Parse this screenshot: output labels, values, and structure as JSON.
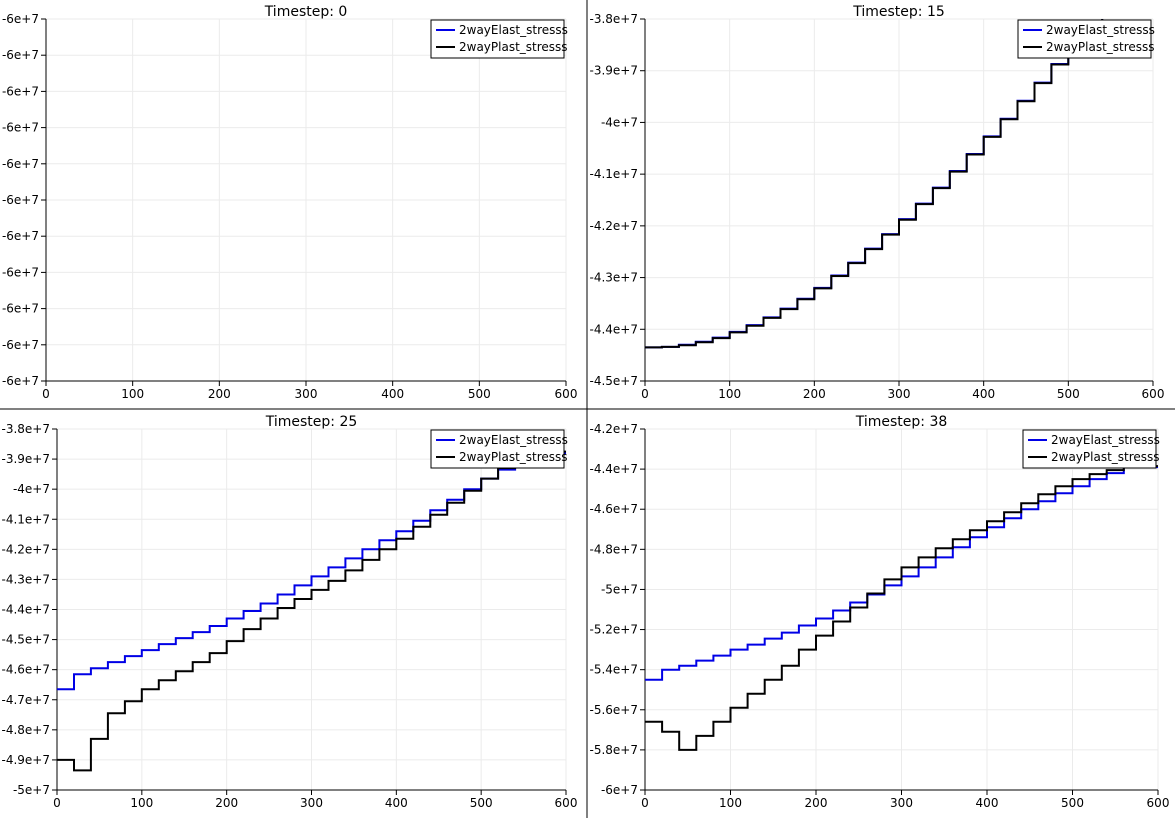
{
  "chart_data": [
    {
      "type": "line",
      "title": "Timestep: 0",
      "xlim": [
        0,
        600
      ],
      "xticks": [
        0,
        100,
        200,
        300,
        400,
        500,
        600
      ],
      "ylim": [
        -60000000.5,
        -59999999.5
      ],
      "yticks": [
        {
          "v": -60000000.5,
          "label": "-6e+7"
        },
        {
          "v": -60000000.4,
          "label": "-6e+7"
        },
        {
          "v": -60000000.3,
          "label": "-6e+7"
        },
        {
          "v": -60000000.2,
          "label": "-6e+7"
        },
        {
          "v": -60000000.1,
          "label": "-6e+7"
        },
        {
          "v": -60000000.0,
          "label": "-6e+7"
        },
        {
          "v": -59999999.9,
          "label": "-6e+7"
        },
        {
          "v": -59999999.8,
          "label": "-6e+7"
        },
        {
          "v": -59999999.7,
          "label": "-6e+7"
        },
        {
          "v": -59999999.6,
          "label": "-6e+7"
        },
        {
          "v": -59999999.5,
          "label": "-6e+7"
        }
      ],
      "grid": true,
      "legend": "top-right",
      "series": [
        {
          "name": "2wayElast_stresss",
          "color": "#0000e6",
          "x": [],
          "y": []
        },
        {
          "name": "2wayPlast_stresss",
          "color": "#000000",
          "x": [],
          "y": []
        }
      ]
    },
    {
      "type": "line",
      "title": "Timestep: 15",
      "xlim": [
        0,
        600
      ],
      "xticks": [
        0,
        100,
        200,
        300,
        400,
        500,
        600
      ],
      "ylim": [
        -45000000,
        -38000000
      ],
      "yticks": [
        {
          "v": -45000000,
          "label": "-4.5e+7"
        },
        {
          "v": -44000000,
          "label": "-4.4e+7"
        },
        {
          "v": -43000000,
          "label": "-4.3e+7"
        },
        {
          "v": -42000000,
          "label": "-4.2e+7"
        },
        {
          "v": -41000000,
          "label": "-4.1e+7"
        },
        {
          "v": -40000000,
          "label": "-4e+7"
        },
        {
          "v": -39000000,
          "label": "-3.9e+7"
        },
        {
          "v": -38000000,
          "label": "-3.8e+7"
        }
      ],
      "grid": true,
      "legend": "top-right",
      "series": [
        {
          "name": "2wayElast_stresss",
          "color": "#0000e6",
          "x": [
            0,
            20,
            40,
            60,
            80,
            100,
            120,
            140,
            160,
            180,
            200,
            220,
            240,
            260,
            280,
            300,
            320,
            340,
            360,
            380,
            400,
            420,
            440,
            460,
            480,
            500,
            520,
            540,
            560
          ],
          "y": [
            -44350000,
            -44340000,
            -44300000,
            -44240000,
            -44160000,
            -44050000,
            -43920000,
            -43770000,
            -43600000,
            -43410000,
            -43200000,
            -42960000,
            -42710000,
            -42440000,
            -42160000,
            -41870000,
            -41570000,
            -41260000,
            -40940000,
            -40610000,
            -40270000,
            -39930000,
            -39580000,
            -39230000,
            -38870000,
            -38510000,
            -38150000,
            -37780000,
            -37400000
          ]
        },
        {
          "name": "2wayPlast_stresss",
          "color": "#000000",
          "x": [
            0,
            20,
            40,
            60,
            80,
            100,
            120,
            140,
            160,
            180,
            200,
            220,
            240,
            260,
            280,
            300,
            320,
            340,
            360,
            380,
            400,
            420,
            440,
            460,
            480,
            500,
            520,
            540,
            560
          ],
          "y": [
            -44350000,
            -44340000,
            -44310000,
            -44250000,
            -44170000,
            -44060000,
            -43930000,
            -43780000,
            -43610000,
            -43420000,
            -43210000,
            -42970000,
            -42720000,
            -42450000,
            -42170000,
            -41880000,
            -41580000,
            -41270000,
            -40950000,
            -40620000,
            -40280000,
            -39940000,
            -39590000,
            -39240000,
            -38880000,
            -38520000,
            -38160000,
            -37790000,
            -37410000
          ]
        }
      ]
    },
    {
      "type": "line",
      "title": "Timestep: 25",
      "xlim": [
        0,
        600
      ],
      "xticks": [
        0,
        100,
        200,
        300,
        400,
        500,
        600
      ],
      "ylim": [
        -50000000,
        -38000000
      ],
      "yticks": [
        {
          "v": -50000000,
          "label": "-5e+7"
        },
        {
          "v": -49000000,
          "label": "-4.9e+7"
        },
        {
          "v": -48000000,
          "label": "-4.8e+7"
        },
        {
          "v": -47000000,
          "label": "-4.7e+7"
        },
        {
          "v": -46000000,
          "label": "-4.6e+7"
        },
        {
          "v": -45000000,
          "label": "-4.5e+7"
        },
        {
          "v": -44000000,
          "label": "-4.4e+7"
        },
        {
          "v": -43000000,
          "label": "-4.3e+7"
        },
        {
          "v": -42000000,
          "label": "-4.2e+7"
        },
        {
          "v": -41000000,
          "label": "-4.1e+7"
        },
        {
          "v": -40000000,
          "label": "-4e+7"
        },
        {
          "v": -39000000,
          "label": "-3.9e+7"
        },
        {
          "v": -38000000,
          "label": "-3.8e+7"
        }
      ],
      "grid": true,
      "legend": "top-right",
      "series": [
        {
          "name": "2wayElast_stresss",
          "color": "#0000e6",
          "x": [
            0,
            20,
            40,
            60,
            80,
            100,
            120,
            140,
            160,
            180,
            200,
            220,
            240,
            260,
            280,
            300,
            320,
            340,
            360,
            380,
            400,
            420,
            440,
            460,
            480,
            500,
            520,
            540,
            560
          ],
          "y": [
            -46650000,
            -46150000,
            -45950000,
            -45750000,
            -45550000,
            -45350000,
            -45150000,
            -44950000,
            -44750000,
            -44550000,
            -44300000,
            -44050000,
            -43800000,
            -43500000,
            -43200000,
            -42900000,
            -42600000,
            -42300000,
            -42000000,
            -41700000,
            -41400000,
            -41050000,
            -40700000,
            -40350000,
            -40000000,
            -39650000,
            -39350000,
            -39100000,
            -38800000
          ]
        },
        {
          "name": "2wayPlast_stresss",
          "color": "#000000",
          "x": [
            0,
            20,
            40,
            60,
            80,
            100,
            120,
            140,
            160,
            180,
            200,
            220,
            240,
            260,
            280,
            300,
            320,
            340,
            360,
            380,
            400,
            420,
            440,
            460,
            480,
            500,
            520,
            540,
            560
          ],
          "y": [
            -49000000,
            -49350000,
            -48300000,
            -47450000,
            -47050000,
            -46650000,
            -46350000,
            -46050000,
            -45750000,
            -45450000,
            -45050000,
            -44650000,
            -44300000,
            -43950000,
            -43650000,
            -43350000,
            -43050000,
            -42700000,
            -42350000,
            -42000000,
            -41650000,
            -41250000,
            -40850000,
            -40450000,
            -40050000,
            -39650000,
            -39300000,
            -39050000,
            -38750000
          ]
        }
      ]
    },
    {
      "type": "line",
      "title": "Timestep: 38",
      "xlim": [
        0,
        600
      ],
      "xticks": [
        0,
        100,
        200,
        300,
        400,
        500,
        600
      ],
      "ylim": [
        -60000000,
        -42000000
      ],
      "yticks": [
        {
          "v": -60000000,
          "label": "-6e+7"
        },
        {
          "v": -58000000,
          "label": "-5.8e+7"
        },
        {
          "v": -56000000,
          "label": "-5.6e+7"
        },
        {
          "v": -54000000,
          "label": "-5.4e+7"
        },
        {
          "v": -52000000,
          "label": "-5.2e+7"
        },
        {
          "v": -50000000,
          "label": "-5e+7"
        },
        {
          "v": -48000000,
          "label": "-4.8e+7"
        },
        {
          "v": -46000000,
          "label": "-4.6e+7"
        },
        {
          "v": -44000000,
          "label": "-4.4e+7"
        },
        {
          "v": -42000000,
          "label": "-4.2e+7"
        }
      ],
      "grid": true,
      "legend": "top-right",
      "series": [
        {
          "name": "2wayElast_stresss",
          "color": "#0000e6",
          "x": [
            0,
            20,
            40,
            60,
            80,
            100,
            120,
            140,
            160,
            180,
            200,
            220,
            240,
            260,
            280,
            300,
            320,
            340,
            360,
            380,
            400,
            420,
            440,
            460,
            480,
            500,
            520,
            540,
            560
          ],
          "y": [
            -54500000,
            -54000000,
            -53800000,
            -53550000,
            -53300000,
            -53000000,
            -52750000,
            -52450000,
            -52150000,
            -51800000,
            -51450000,
            -51050000,
            -50650000,
            -50250000,
            -49800000,
            -49350000,
            -48900000,
            -48400000,
            -47900000,
            -47400000,
            -46900000,
            -46450000,
            -46000000,
            -45600000,
            -45200000,
            -44850000,
            -44500000,
            -44200000,
            -43900000
          ]
        },
        {
          "name": "2wayPlast_stresss",
          "color": "#000000",
          "x": [
            0,
            20,
            40,
            60,
            80,
            100,
            120,
            140,
            160,
            180,
            200,
            220,
            240,
            260,
            280,
            300,
            320,
            340,
            360,
            380,
            400,
            420,
            440,
            460,
            480,
            500,
            520,
            540,
            560
          ],
          "y": [
            -56600000,
            -57100000,
            -58000000,
            -57300000,
            -56600000,
            -55900000,
            -55200000,
            -54500000,
            -53800000,
            -53000000,
            -52300000,
            -51600000,
            -50900000,
            -50200000,
            -49500000,
            -48900000,
            -48400000,
            -47950000,
            -47500000,
            -47050000,
            -46600000,
            -46150000,
            -45700000,
            -45250000,
            -44850000,
            -44500000,
            -44250000,
            -44050000,
            -43850000
          ]
        }
      ]
    }
  ]
}
